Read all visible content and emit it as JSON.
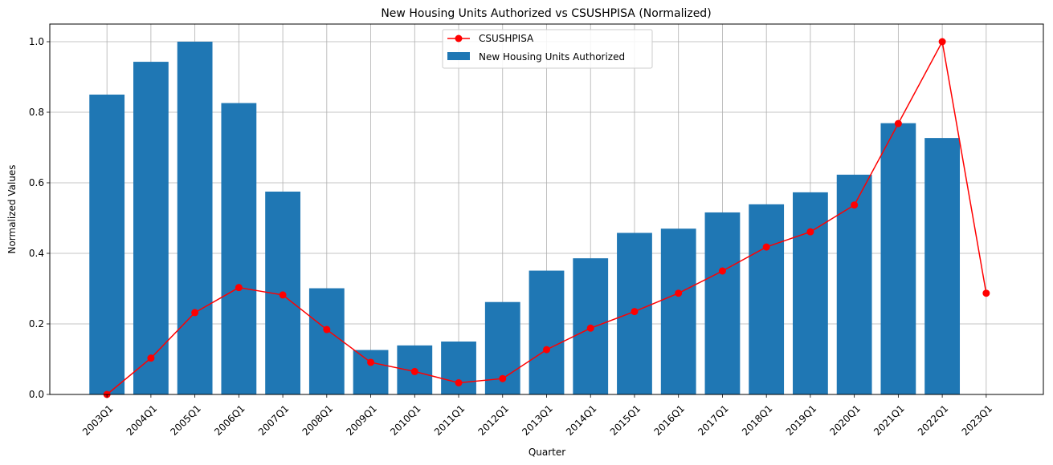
{
  "chart_data": {
    "type": "bar",
    "title": "New Housing Units Authorized vs CSUSHPISA (Normalized)",
    "xlabel": "Quarter",
    "ylabel": "Normalized Values",
    "ylim": [
      0,
      1.05
    ],
    "yticks": [
      "0.0",
      "0.2",
      "0.4",
      "0.6",
      "0.8",
      "1.0"
    ],
    "ytick_values": [
      0,
      0.2,
      0.4,
      0.6,
      0.8,
      1.0
    ],
    "grid": true,
    "legend_position": "top-center",
    "categories": [
      "2003Q1",
      "2004Q1",
      "2005Q1",
      "2006Q1",
      "2007Q1",
      "2008Q1",
      "2009Q1",
      "2010Q1",
      "2011Q1",
      "2012Q1",
      "2013Q1",
      "2014Q1",
      "2015Q1",
      "2016Q1",
      "2017Q1",
      "2018Q1",
      "2019Q1",
      "2020Q1",
      "2021Q1",
      "2022Q1",
      "2023Q1"
    ],
    "series": [
      {
        "name": "New Housing Units Authorized",
        "type": "bar",
        "color": "#1f77b4",
        "values": [
          0.85,
          0.943,
          1.0,
          0.826,
          0.575,
          0.301,
          0.126,
          0.139,
          0.15,
          0.262,
          0.351,
          0.386,
          0.458,
          0.47,
          0.516,
          0.539,
          0.573,
          0.623,
          0.769,
          0.727,
          null
        ]
      },
      {
        "name": "CSUSHPISA",
        "type": "line",
        "color": "#ff0000",
        "values": [
          0.0,
          0.103,
          0.232,
          0.303,
          0.282,
          0.184,
          0.091,
          0.065,
          0.033,
          0.045,
          0.127,
          0.188,
          0.235,
          0.287,
          0.35,
          0.418,
          0.461,
          0.537,
          0.768,
          1.0,
          0.287
        ]
      }
    ]
  }
}
